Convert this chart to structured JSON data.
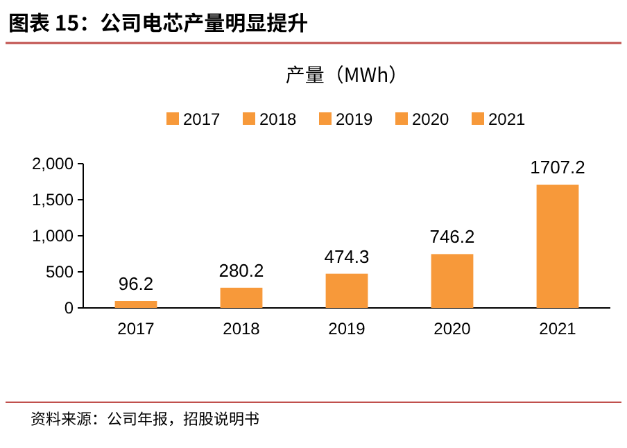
{
  "chart_data": {
    "type": "bar",
    "title": "图表 15：公司电芯产量明显提升",
    "subtitle": "产量（MWh）",
    "categories": [
      "2017",
      "2018",
      "2019",
      "2020",
      "2021"
    ],
    "stacked": true,
    "series": [
      {
        "name": "2017",
        "color": "#f7993a",
        "values": [
          96.2,
          null,
          null,
          null,
          null
        ]
      },
      {
        "name": "2018",
        "color": "#f7993a",
        "values": [
          null,
          280.2,
          null,
          null,
          null
        ]
      },
      {
        "name": "2019",
        "color": "#f7993a",
        "values": [
          null,
          null,
          474.3,
          null,
          null
        ]
      },
      {
        "name": "2020",
        "color": "#f7993a",
        "values": [
          null,
          null,
          null,
          746.2,
          null
        ]
      },
      {
        "name": "2021",
        "color": "#f7993a",
        "values": [
          null,
          null,
          null,
          null,
          1707.2
        ]
      }
    ],
    "ylim": [
      0,
      2000
    ],
    "yticks": [
      0,
      {
        "value": 500,
        "label": "500"
      },
      {
        "value": 1000,
        "label": "1,000"
      },
      {
        "value": 1500,
        "label": "1,500"
      },
      {
        "value": 2000,
        "label": "2,000"
      }
    ],
    "data_labels": true,
    "legend": "top",
    "grid": false,
    "annotations": [
      "资料来源：公司年报，招股说明书"
    ]
  }
}
